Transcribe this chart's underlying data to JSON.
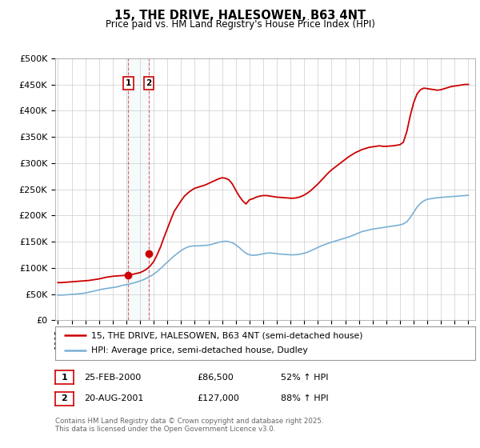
{
  "title": "15, THE DRIVE, HALESOWEN, B63 4NT",
  "subtitle": "Price paid vs. HM Land Registry's House Price Index (HPI)",
  "ylabel_ticks": [
    "£0",
    "£50K",
    "£100K",
    "£150K",
    "£200K",
    "£250K",
    "£300K",
    "£350K",
    "£400K",
    "£450K",
    "£500K"
  ],
  "ytick_vals": [
    0,
    50000,
    100000,
    150000,
    200000,
    250000,
    300000,
    350000,
    400000,
    450000,
    500000
  ],
  "ylim": [
    0,
    500000
  ],
  "xlim_start": 1994.8,
  "xlim_end": 2025.5,
  "legend_line1": "15, THE DRIVE, HALESOWEN, B63 4NT (semi-detached house)",
  "legend_line2": "HPI: Average price, semi-detached house, Dudley",
  "sale1_date": "25-FEB-2000",
  "sale1_price": "£86,500",
  "sale1_hpi": "52% ↑ HPI",
  "sale1_year": 2000.15,
  "sale1_value": 86500,
  "sale2_date": "20-AUG-2001",
  "sale2_price": "£127,000",
  "sale2_hpi": "88% ↑ HPI",
  "sale2_year": 2001.63,
  "sale2_value": 127000,
  "copyright": "Contains HM Land Registry data © Crown copyright and database right 2025.\nThis data is licensed under the Open Government Licence v3.0.",
  "red_line_color": "#cc0000",
  "blue_line_color": "#7ab0d4",
  "grid_color": "#cccccc",
  "background_color": "#ffffff",
  "hpi_years": [
    1995,
    1995.25,
    1995.5,
    1995.75,
    1996,
    1996.25,
    1996.5,
    1996.75,
    1997,
    1997.25,
    1997.5,
    1997.75,
    1998,
    1998.25,
    1998.5,
    1998.75,
    1999,
    1999.25,
    1999.5,
    1999.75,
    2000,
    2000.25,
    2000.5,
    2000.75,
    2001,
    2001.25,
    2001.5,
    2001.75,
    2002,
    2002.25,
    2002.5,
    2002.75,
    2003,
    2003.25,
    2003.5,
    2003.75,
    2004,
    2004.25,
    2004.5,
    2004.75,
    2005,
    2005.25,
    2005.5,
    2005.75,
    2006,
    2006.25,
    2006.5,
    2006.75,
    2007,
    2007.25,
    2007.5,
    2007.75,
    2008,
    2008.25,
    2008.5,
    2008.75,
    2009,
    2009.25,
    2009.5,
    2009.75,
    2010,
    2010.25,
    2010.5,
    2010.75,
    2011,
    2011.25,
    2011.5,
    2011.75,
    2012,
    2012.25,
    2012.5,
    2012.75,
    2013,
    2013.25,
    2013.5,
    2013.75,
    2014,
    2014.25,
    2014.5,
    2014.75,
    2015,
    2015.25,
    2015.5,
    2015.75,
    2016,
    2016.25,
    2016.5,
    2016.75,
    2017,
    2017.25,
    2017.5,
    2017.75,
    2018,
    2018.25,
    2018.5,
    2018.75,
    2019,
    2019.25,
    2019.5,
    2019.75,
    2020,
    2020.25,
    2020.5,
    2020.75,
    2021,
    2021.25,
    2021.5,
    2021.75,
    2022,
    2022.25,
    2022.5,
    2022.75,
    2023,
    2023.25,
    2023.5,
    2023.75,
    2024,
    2024.25,
    2024.5,
    2024.75,
    2025
  ],
  "hpi_values": [
    48000,
    48200,
    48500,
    49000,
    49500,
    50000,
    50500,
    51200,
    52000,
    53500,
    55000,
    56500,
    58000,
    59500,
    60500,
    61500,
    62500,
    63500,
    65000,
    67000,
    68000,
    69500,
    71000,
    73000,
    75000,
    77500,
    80500,
    84000,
    88000,
    93000,
    99000,
    105000,
    111000,
    117000,
    123000,
    128000,
    133000,
    137000,
    140000,
    141500,
    142000,
    142000,
    142500,
    143000,
    143500,
    145000,
    147000,
    149000,
    150000,
    151000,
    150000,
    148000,
    144000,
    139000,
    133000,
    128000,
    125000,
    124000,
    124500,
    125500,
    127000,
    128000,
    128500,
    128000,
    127000,
    126500,
    126000,
    125500,
    125000,
    125000,
    125500,
    126500,
    128000,
    130000,
    133000,
    136000,
    139000,
    142000,
    144500,
    147000,
    149000,
    151000,
    153000,
    155000,
    157000,
    159000,
    161500,
    164000,
    167000,
    169500,
    171000,
    172500,
    174000,
    175000,
    176000,
    177000,
    178000,
    179000,
    180000,
    181000,
    182000,
    184000,
    188000,
    196000,
    206000,
    216000,
    223000,
    228000,
    231000,
    232000,
    233000,
    234000,
    234500,
    235000,
    235500,
    236000,
    236500,
    237000,
    237500,
    238000,
    238500
  ],
  "red_years": [
    1995,
    1995.25,
    1995.5,
    1995.75,
    1996,
    1996.25,
    1996.5,
    1996.75,
    1997,
    1997.25,
    1997.5,
    1997.75,
    1998,
    1998.25,
    1998.5,
    1998.75,
    1999,
    1999.25,
    1999.5,
    1999.75,
    2000,
    2000.25,
    2000.5,
    2000.75,
    2001,
    2001.25,
    2001.5,
    2001.75,
    2002,
    2002.25,
    2002.5,
    2002.75,
    2003,
    2003.25,
    2003.5,
    2003.75,
    2004,
    2004.25,
    2004.5,
    2004.75,
    2005,
    2005.25,
    2005.5,
    2005.75,
    2006,
    2006.25,
    2006.5,
    2006.75,
    2007,
    2007.25,
    2007.5,
    2007.75,
    2008,
    2008.25,
    2008.5,
    2008.75,
    2009,
    2009.25,
    2009.5,
    2009.75,
    2010,
    2010.25,
    2010.5,
    2010.75,
    2011,
    2011.25,
    2011.5,
    2011.75,
    2012,
    2012.25,
    2012.5,
    2012.75,
    2013,
    2013.25,
    2013.5,
    2013.75,
    2014,
    2014.25,
    2014.5,
    2014.75,
    2015,
    2015.25,
    2015.5,
    2015.75,
    2016,
    2016.25,
    2016.5,
    2016.75,
    2017,
    2017.25,
    2017.5,
    2017.75,
    2018,
    2018.25,
    2018.5,
    2018.75,
    2019,
    2019.25,
    2019.5,
    2019.75,
    2020,
    2020.25,
    2020.5,
    2020.75,
    2021,
    2021.25,
    2021.5,
    2021.75,
    2022,
    2022.25,
    2022.5,
    2022.75,
    2023,
    2023.25,
    2023.5,
    2023.75,
    2024,
    2024.25,
    2024.5,
    2024.75,
    2025
  ],
  "red_values": [
    72000,
    72000,
    72500,
    73000,
    73500,
    74000,
    74500,
    75000,
    75500,
    76000,
    77000,
    78000,
    79000,
    80500,
    82000,
    83000,
    84000,
    84500,
    85000,
    85500,
    86000,
    87000,
    88000,
    89500,
    91000,
    94000,
    98000,
    104000,
    112000,
    125000,
    140000,
    158000,
    175000,
    192000,
    208000,
    218000,
    228000,
    237000,
    243000,
    248000,
    252000,
    254000,
    256000,
    258000,
    261000,
    264000,
    267000,
    270000,
    272000,
    271000,
    268000,
    260000,
    248000,
    237000,
    228000,
    222000,
    230000,
    232000,
    235000,
    237000,
    238000,
    238000,
    237000,
    236000,
    235000,
    234500,
    234000,
    233500,
    233000,
    233000,
    234000,
    236000,
    239000,
    243000,
    248000,
    254000,
    260000,
    267000,
    274000,
    281000,
    287000,
    292000,
    297000,
    302000,
    307000,
    312000,
    316000,
    320000,
    323000,
    326000,
    328000,
    330000,
    331000,
    332000,
    333000,
    332000,
    332000,
    332500,
    333000,
    334000,
    335000,
    340000,
    360000,
    390000,
    415000,
    432000,
    440000,
    443000,
    442000,
    441000,
    440000,
    439000,
    440000,
    442000,
    444000,
    446000,
    447000,
    448000,
    449000,
    450000,
    450000
  ]
}
